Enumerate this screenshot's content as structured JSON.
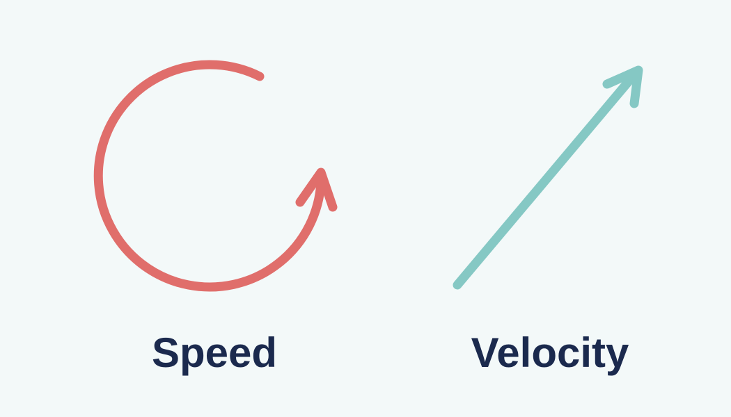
{
  "speed": {
    "label": "Speed",
    "color": "#e06e6b",
    "icon": "circular-arrow-icon"
  },
  "velocity": {
    "label": "Velocity",
    "color": "#85c8c4",
    "icon": "diagonal-arrow-icon"
  },
  "colors": {
    "background": "#f3f9f9",
    "text": "#1b2a4e"
  }
}
